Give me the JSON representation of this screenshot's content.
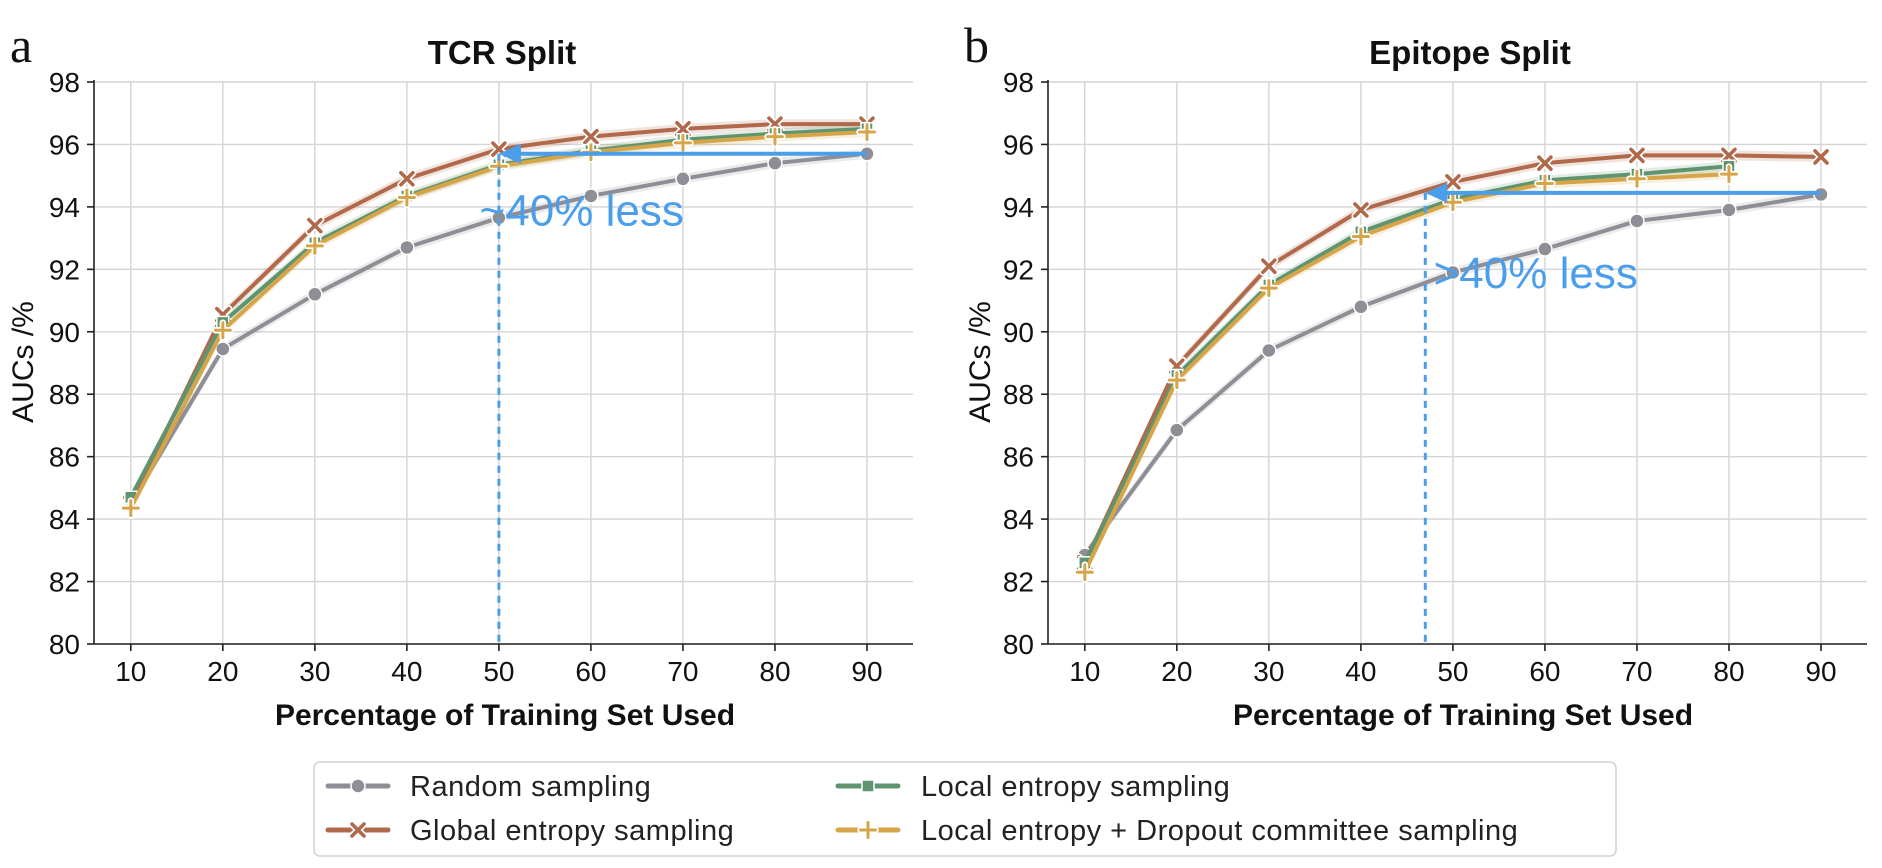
{
  "legend": [
    {
      "key": "random",
      "label": "Random sampling",
      "color": "#8e8e96",
      "marker": "circle"
    },
    {
      "key": "global",
      "label": "Global entropy sampling",
      "color": "#b0694a",
      "marker": "x"
    },
    {
      "key": "local",
      "label": "Local entropy sampling",
      "color": "#5f9470",
      "marker": "square"
    },
    {
      "key": "dropout",
      "label": "Local entropy + Dropout committee sampling",
      "color": "#d6a54a",
      "marker": "plus"
    }
  ],
  "annotation_color": "#4a9eea",
  "chart_data": [
    {
      "type": "line",
      "panel_letter": "a",
      "title": "TCR Split",
      "xlabel": "Percentage of Training Set Used",
      "ylabel": "AUCs /%",
      "x": [
        10,
        20,
        30,
        40,
        50,
        60,
        70,
        80,
        90
      ],
      "xticks": [
        10,
        20,
        30,
        40,
        50,
        60,
        70,
        80,
        90
      ],
      "yticks": [
        80,
        82,
        84,
        86,
        88,
        90,
        92,
        94,
        96,
        98
      ],
      "xlim": [
        6,
        95
      ],
      "ylim": [
        80,
        98
      ],
      "grid": true,
      "series": [
        {
          "key": "random",
          "name": "Random sampling",
          "values": [
            84.5,
            89.45,
            91.2,
            92.7,
            93.65,
            94.35,
            94.9,
            95.4,
            95.7
          ]
        },
        {
          "key": "global",
          "name": "Global entropy sampling",
          "values": [
            84.5,
            90.55,
            93.4,
            94.9,
            95.85,
            96.25,
            96.5,
            96.65,
            96.65
          ]
        },
        {
          "key": "local",
          "name": "Local entropy sampling",
          "values": [
            84.7,
            90.3,
            92.85,
            94.35,
            95.35,
            95.8,
            96.15,
            96.35,
            96.5
          ]
        },
        {
          "key": "dropout",
          "name": "Local entropy + Dropout committee sampling",
          "values": [
            84.35,
            90.05,
            92.75,
            94.3,
            95.3,
            95.75,
            96.05,
            96.25,
            96.4
          ]
        }
      ],
      "annotation": {
        "text": "~40% less",
        "arrow_from_x": 90,
        "arrow_to_x": 50,
        "arrow_y": 95.7,
        "vline_x": 50,
        "label_x": 59,
        "label_y": 93.4
      }
    },
    {
      "type": "line",
      "panel_letter": "b",
      "title": "Epitope Split",
      "xlabel": "Percentage of Training Set Used",
      "ylabel": "AUCs /%",
      "x": [
        10,
        20,
        30,
        40,
        50,
        60,
        70,
        80,
        90
      ],
      "xticks": [
        10,
        20,
        30,
        40,
        50,
        60,
        70,
        80,
        90
      ],
      "yticks": [
        80,
        82,
        84,
        86,
        88,
        90,
        92,
        94,
        96,
        98
      ],
      "xlim": [
        6,
        95
      ],
      "ylim": [
        80,
        98
      ],
      "grid": true,
      "series": [
        {
          "key": "random",
          "name": "Random sampling",
          "values": [
            82.85,
            86.85,
            89.4,
            90.8,
            91.9,
            92.65,
            93.55,
            93.9,
            94.4
          ]
        },
        {
          "key": "global",
          "name": "Global entropy sampling",
          "values": [
            82.6,
            88.9,
            92.1,
            93.9,
            94.8,
            95.4,
            95.65,
            95.65,
            95.6
          ]
        },
        {
          "key": "local",
          "name": "Local entropy sampling",
          "values": [
            82.6,
            88.6,
            91.5,
            93.2,
            94.25,
            94.85,
            95.05,
            95.3,
            null
          ]
        },
        {
          "key": "dropout",
          "name": "Local entropy + Dropout committee sampling",
          "values": [
            82.3,
            88.45,
            91.4,
            93.05,
            94.15,
            94.75,
            94.9,
            95.05,
            null
          ]
        }
      ],
      "annotation": {
        "text": ">40% less",
        "arrow_from_x": 90,
        "arrow_to_x": 47,
        "arrow_y": 94.45,
        "vline_x": 47,
        "label_x": 59,
        "label_y": 91.4
      }
    }
  ]
}
